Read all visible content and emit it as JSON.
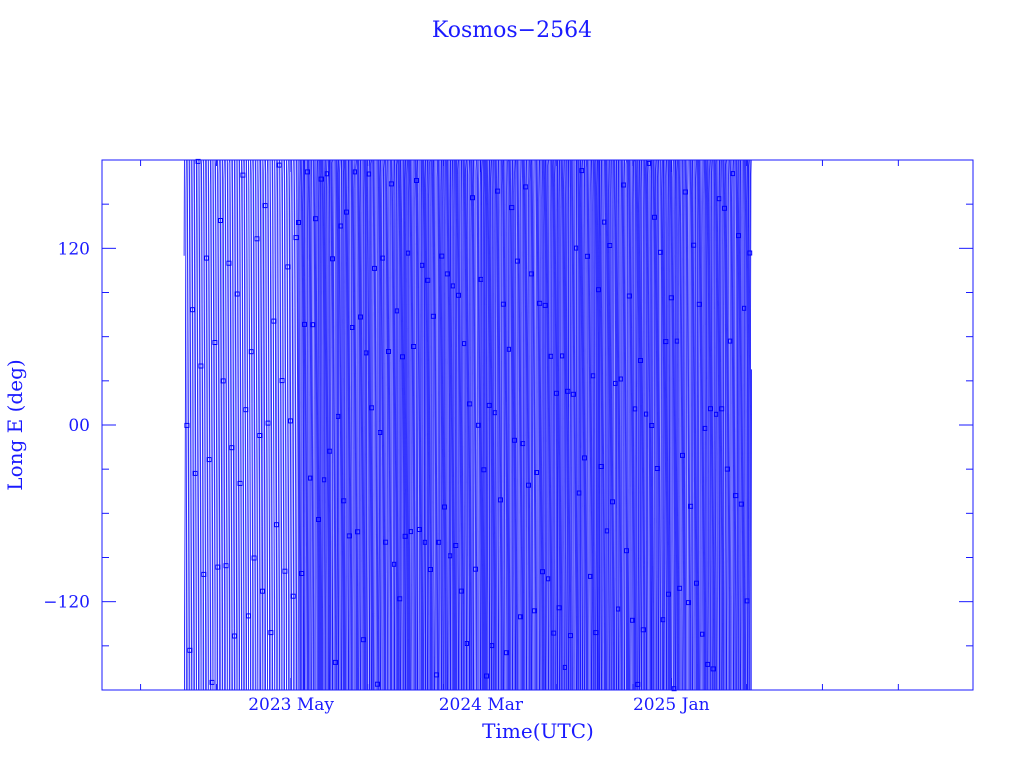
{
  "chart_data": {
    "type": "line",
    "title": "Kosmos−2564",
    "xlabel": "Time(UTC)",
    "ylabel": "Long E (deg)",
    "x_tick_labels": [
      {
        "label": "2023 May",
        "date": "2023-05-01"
      },
      {
        "label": "2024 Mar",
        "date": "2024-03-01"
      },
      {
        "label": "2025 Jan",
        "date": "2025-01-01"
      }
    ],
    "y_tick_labels": [
      {
        "label": "−120",
        "value": -120
      },
      {
        "label": "00",
        "value": 0
      },
      {
        "label": "120",
        "value": 120
      }
    ],
    "xlim": [
      "2022-07-01",
      "2026-05-01"
    ],
    "ylim": [
      -180,
      180
    ],
    "grid": false,
    "legend": "none",
    "series": [
      {
        "data_start": "2022-11-10",
        "data_end": "2025-05-10",
        "value_range": [
          -180,
          180
        ],
        "wrap_at": [
          -180,
          180
        ],
        "marker": "square",
        "line": "thin"
      }
    ]
  },
  "colors": {
    "axis": "#1a1aff",
    "data": "#0000ff",
    "background": "#ffffff"
  }
}
